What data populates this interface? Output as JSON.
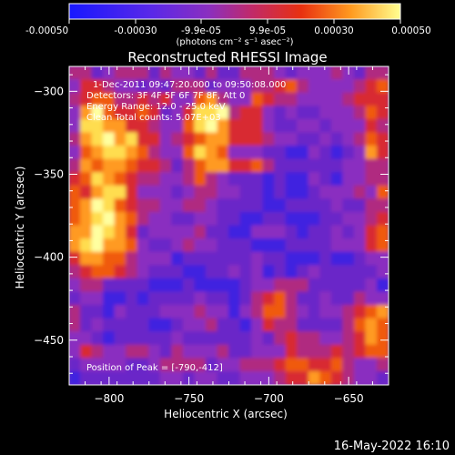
{
  "colorbar": {
    "tick_labels": [
      "-0.00050",
      "-0.00030",
      "-9.9e-05",
      "9.9e-05",
      "0.00030",
      "0.00050"
    ],
    "units": "(photons cm⁻² s⁻¹ asec⁻²)"
  },
  "title": "Reconstructed RHESSI Image",
  "info": {
    "line1": "1-Dec-2011 09:47:20.000 to 09:50:08.000",
    "line2": "Detectors: 3F 4F 5F 6F 7F 8F, Att 0",
    "line3": "Energy Range: 12.0 - 25.0 keV",
    "line4": "Clean     Total counts: 5.07E+03",
    "peak": "Position of Peak = [-790,-412]"
  },
  "footer": {
    "date": "16-May-2022 16:10"
  },
  "chart_data": {
    "type": "heatmap",
    "title": "Reconstructed RHESSI Image",
    "xlabel": "Heliocentric X (arcsec)",
    "ylabel": "Heliocentric Y (arcsec)",
    "xlim": [
      -825,
      -625
    ],
    "ylim": [
      -477,
      -285
    ],
    "x_ticks": [
      -800,
      -750,
      -700,
      -650
    ],
    "y_ticks": [
      -300,
      -350,
      -400,
      -450
    ],
    "x_tick_labels": [
      "−800",
      "−750",
      "−700",
      "−650"
    ],
    "y_tick_labels": [
      "−300",
      "−350",
      "−400",
      "−450"
    ],
    "colorbar_range": [
      -0.0005,
      0.0005
    ],
    "peak_position": [
      -790,
      -412
    ],
    "grid": false,
    "colors": {
      "cold": "#1a1aff",
      "neutral": "#8a2fc0",
      "warm": "#e83010",
      "hot": "#ffff80",
      "background": "#000000",
      "axes": "#ffffff"
    },
    "intensity_rows": [
      "4423444243324224443233343244",
      "3554332324442333445643333456",
      "4566445453367433654433334555",
      "3796556523588945532322333465",
      "3887755433689755532233233354",
      "4789785534567755543322323465",
      "3678876433687633322113212375",
      "4767765542467755642222223344",
      "5687654433464322212113213344",
      "6578853332344332212112333436",
      "6798654433443222211222232244",
      "6789764332233221122111223345",
      "7798752333342211333212232356",
      "7897763223433222111222233356",
      "5776643331222222322111211233",
      "4566543222112232312123222223",
      "3442222111211112334442222231",
      "2331121222232212456422322433",
      "4221322233343313466432334567",
      "4232222112334221354422224676",
      "3321222223222222324544334576",
      "3543344324333422333544454566",
      "2333322344442334445665564334",
      "1222222233233223334557654332"
    ]
  }
}
